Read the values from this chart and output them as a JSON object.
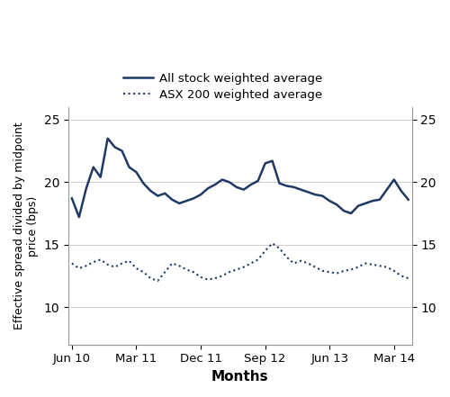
{
  "xlabel": "Months",
  "ylabel": "Effective spread divided by midpoint\nprice (bps)",
  "line1_label": "All stock weighted average",
  "line2_label": "ASX 200 weighted average",
  "line_color": "#1F3864",
  "ylim": [
    7,
    26
  ],
  "yticks": [
    10,
    15,
    20,
    25
  ],
  "xtick_labels": [
    "Jun 10",
    "Mar 11",
    "Dec 11",
    "Sep 12",
    "Jun 13",
    "Mar 14"
  ],
  "line1_data": [
    18.7,
    17.2,
    19.5,
    21.2,
    20.4,
    23.5,
    22.8,
    22.5,
    21.2,
    20.8,
    19.9,
    19.3,
    18.9,
    19.1,
    18.6,
    18.3,
    18.5,
    18.7,
    19.0,
    19.5,
    19.8,
    20.2,
    20.0,
    19.6,
    19.4,
    19.8,
    20.1,
    21.5,
    21.7,
    19.9,
    19.7,
    19.6,
    19.4,
    19.2,
    19.0,
    18.9,
    18.5,
    18.2,
    17.7,
    17.5,
    18.1,
    18.3,
    18.5,
    18.6,
    19.4,
    20.2,
    19.3,
    18.6
  ],
  "line2_data": [
    13.5,
    13.1,
    13.3,
    13.6,
    13.8,
    13.4,
    13.2,
    13.5,
    13.7,
    13.1,
    12.8,
    12.3,
    12.1,
    12.8,
    13.5,
    13.3,
    13.0,
    12.8,
    12.4,
    12.2,
    12.3,
    12.5,
    12.8,
    13.0,
    13.2,
    13.5,
    13.8,
    14.5,
    15.1,
    14.7,
    14.0,
    13.5,
    13.7,
    13.5,
    13.2,
    12.9,
    12.8,
    12.7,
    12.9,
    13.0,
    13.2,
    13.5,
    13.4,
    13.3,
    13.2,
    12.9,
    12.5,
    12.3
  ],
  "n_points": 48,
  "xtick_positions": [
    0,
    9,
    18,
    27,
    36,
    45
  ]
}
